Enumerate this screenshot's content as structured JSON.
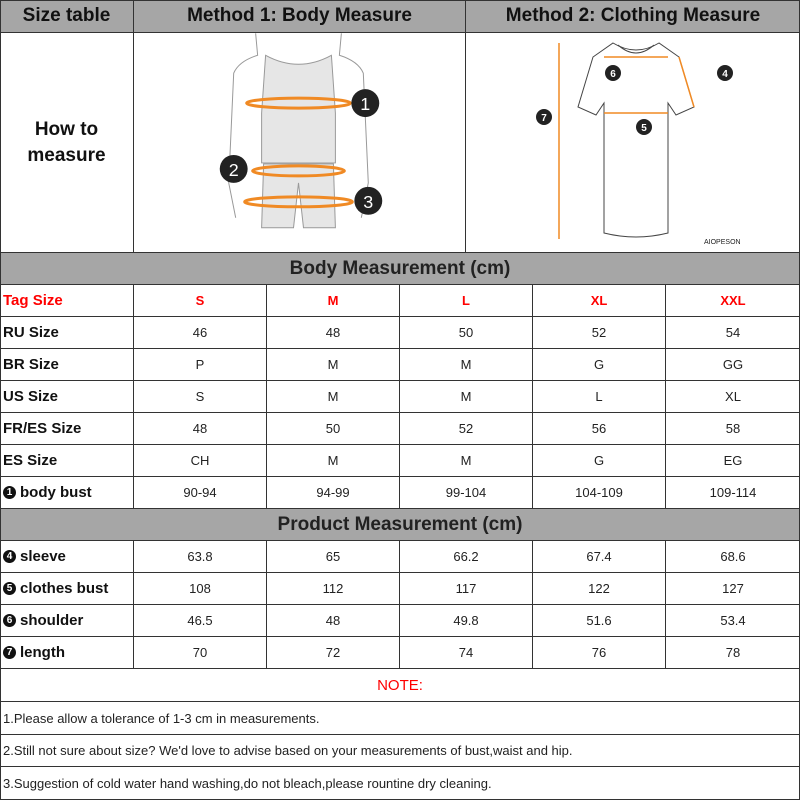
{
  "header": {
    "size_table": "Size table",
    "method1": "Method 1: Body  Measure",
    "method2": "Method 2: Clothing Measure"
  },
  "how_to": {
    "line1": "How to",
    "line2": "measure",
    "body_markers": [
      "1",
      "2",
      "3"
    ],
    "shirt_markers": [
      "4",
      "5",
      "6",
      "7"
    ],
    "brand": "AIOPESON"
  },
  "colors": {
    "header_bg": "#a6a6a6",
    "accent": "#f08a24",
    "tag_red": "#ff0000"
  },
  "body_section": {
    "title": "Body Measurement (cm)",
    "tag_row": {
      "label": "Tag Size",
      "values": [
        "S",
        "M",
        "L",
        "XL",
        "XXL"
      ]
    },
    "rows": [
      {
        "label": "RU Size",
        "values": [
          "46",
          "48",
          "50",
          "52",
          "54"
        ]
      },
      {
        "label": "BR Size",
        "values": [
          "P",
          "M",
          "M",
          "G",
          "GG"
        ]
      },
      {
        "label": "US Size",
        "values": [
          "S",
          "M",
          "M",
          "L",
          "XL"
        ]
      },
      {
        "label": "FR/ES Size",
        "values": [
          "48",
          "50",
          "52",
          "56",
          "58"
        ]
      },
      {
        "label": "ES Size",
        "values": [
          "CH",
          "M",
          "M",
          "G",
          "EG"
        ]
      },
      {
        "marker": "1",
        "label": "body bust",
        "values": [
          "90-94",
          "94-99",
          "99-104",
          "104-109",
          "109-114"
        ]
      }
    ]
  },
  "product_section": {
    "title": "Product Measurement (cm)",
    "rows": [
      {
        "marker": "4",
        "label": "sleeve",
        "values": [
          "63.8",
          "65",
          "66.2",
          "67.4",
          "68.6"
        ]
      },
      {
        "marker": "5",
        "label": "clothes bust",
        "values": [
          "108",
          "112",
          "117",
          "122",
          "127"
        ]
      },
      {
        "marker": "6",
        "label": "shoulder",
        "values": [
          "46.5",
          "48",
          "49.8",
          "51.6",
          "53.4"
        ]
      },
      {
        "marker": "7",
        "label": "length",
        "values": [
          "70",
          "72",
          "74",
          "76",
          "78"
        ]
      }
    ]
  },
  "notes": {
    "title": "NOTE:",
    "items": [
      "1.Please allow a tolerance of 1-3 cm in measurements.",
      "2.Still not sure about size? We'd love to advise based on your measurements of bust,waist and hip.",
      "3.Suggestion of cold water hand washing,do not bleach,please rountine dry cleaning."
    ]
  }
}
